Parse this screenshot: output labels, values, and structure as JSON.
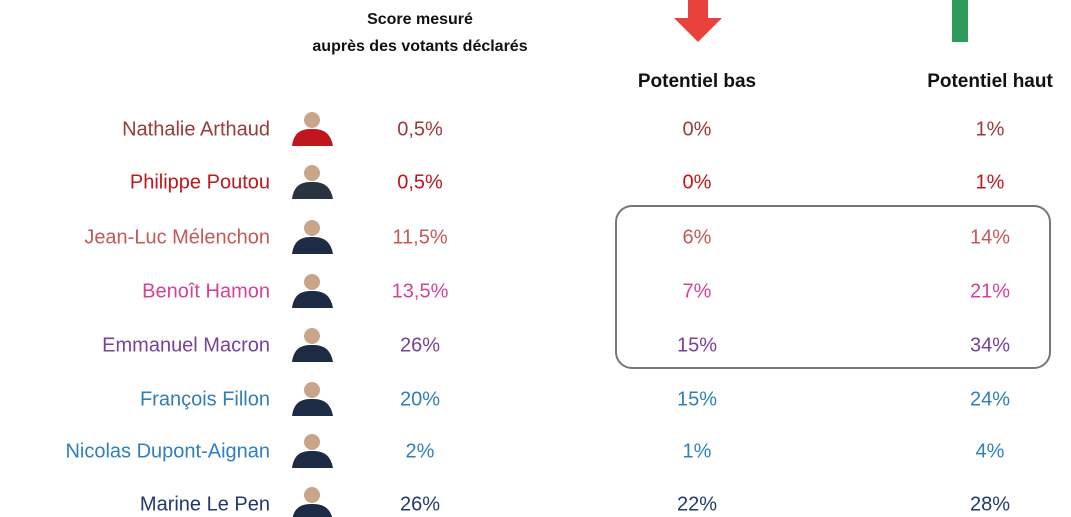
{
  "header": {
    "score_label": [
      "Score  mesuré",
      "auprès des votants déclarés"
    ],
    "low_label": "Potentiel bas",
    "high_label": "Potentiel haut"
  },
  "table": {
    "rows": [
      {
        "name": "Nathalie Arthaud",
        "score": "0,5%",
        "low": "0%",
        "high": "1%",
        "color": "#9a3a3a"
      },
      {
        "name": "Philippe Poutou",
        "score": "0,5%",
        "low": "0%",
        "high": "1%",
        "color": "#c0161d"
      },
      {
        "name": "Jean-Luc Mélenchon",
        "score": "11,5%",
        "low": "6%",
        "high": "14%",
        "color": "#c45a58"
      },
      {
        "name": "Benoît Hamon",
        "score": "13,5%",
        "low": "7%",
        "high": "21%",
        "color": "#d4439a"
      },
      {
        "name": "Emmanuel Macron",
        "score": "26%",
        "low": "15%",
        "high": "34%",
        "color": "#7a3f9d"
      },
      {
        "name": "François Fillon",
        "score": "20%",
        "low": "15%",
        "high": "24%",
        "color": "#2f80b8"
      },
      {
        "name": "Nicolas Dupont-Aignan",
        "score": "2%",
        "low": "1%",
        "high": "4%",
        "color": "#2f80bf"
      },
      {
        "name": "Marine Le Pen",
        "score": "26%",
        "low": "22%",
        "high": "28%",
        "color": "#1f3a6b"
      }
    ]
  }
}
